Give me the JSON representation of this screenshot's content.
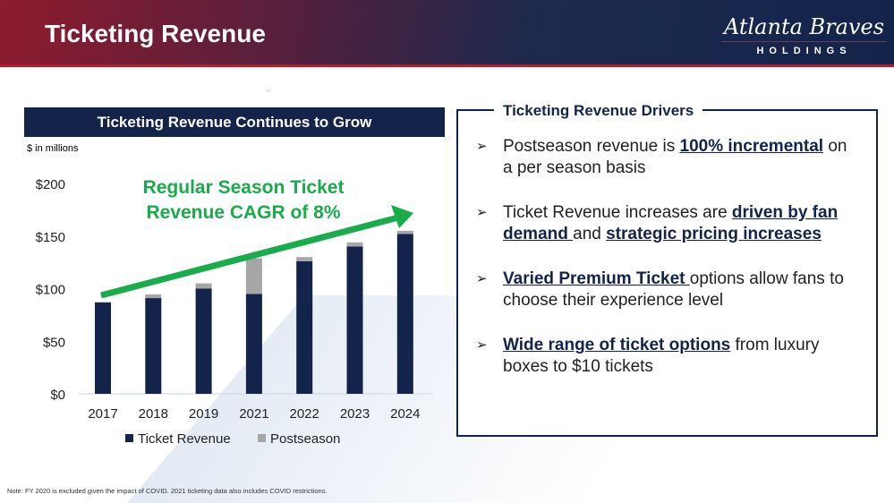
{
  "header": {
    "title": "Ticketing Revenue",
    "logo_script": "Atlanta Braves",
    "logo_sub": "HOLDINGS"
  },
  "chart_data": {
    "type": "bar",
    "stacked": true,
    "title": "Ticketing Revenue Continues to Grow",
    "units": "$ in millions",
    "categories": [
      "2017",
      "2018",
      "2019",
      "2021",
      "2022",
      "2023",
      "2024"
    ],
    "series": [
      {
        "name": "Ticket Revenue",
        "color": "#13234a",
        "values": [
          87,
          91,
          100,
          95,
          126,
          140,
          152
        ]
      },
      {
        "name": "Postseason",
        "color": "#a6a6a6",
        "values": [
          0,
          3.5,
          5,
          34,
          4,
          4,
          3
        ]
      }
    ],
    "yticks": [
      "$0",
      "$50",
      "$100",
      "$150",
      "$200"
    ],
    "ylim": [
      0,
      200
    ],
    "legend": "bottom",
    "annotation": [
      "Regular Season Ticket",
      "Revenue CAGR of 8%"
    ],
    "annotation_color": "#1aab4b"
  },
  "drivers": {
    "title": "Ticketing Revenue Drivers",
    "items": [
      [
        {
          "t": "Postseason revenue is "
        },
        {
          "t": "100% incremental",
          "b": 1
        },
        {
          "t": " on a per season basis"
        }
      ],
      [
        {
          "t": "Ticket Revenue increases are "
        },
        {
          "t": "driven by fan demand ",
          "b": 1
        },
        {
          "t": "and "
        },
        {
          "t": "strategic pricing increases",
          "b": 1
        }
      ],
      [
        {
          "t": "Varied Premium Ticket ",
          "b": 1
        },
        {
          "t": "options allow fans to choose their experience level"
        }
      ],
      [
        {
          "t": "Wide range of ticket options",
          "b": 1
        },
        {
          "t": " from luxury boxes to $10 tickets"
        }
      ]
    ]
  },
  "note": "Note: FY 2020 is excluded given the impact of COVID. 2021 ticketing data also includes COVID restrictions."
}
